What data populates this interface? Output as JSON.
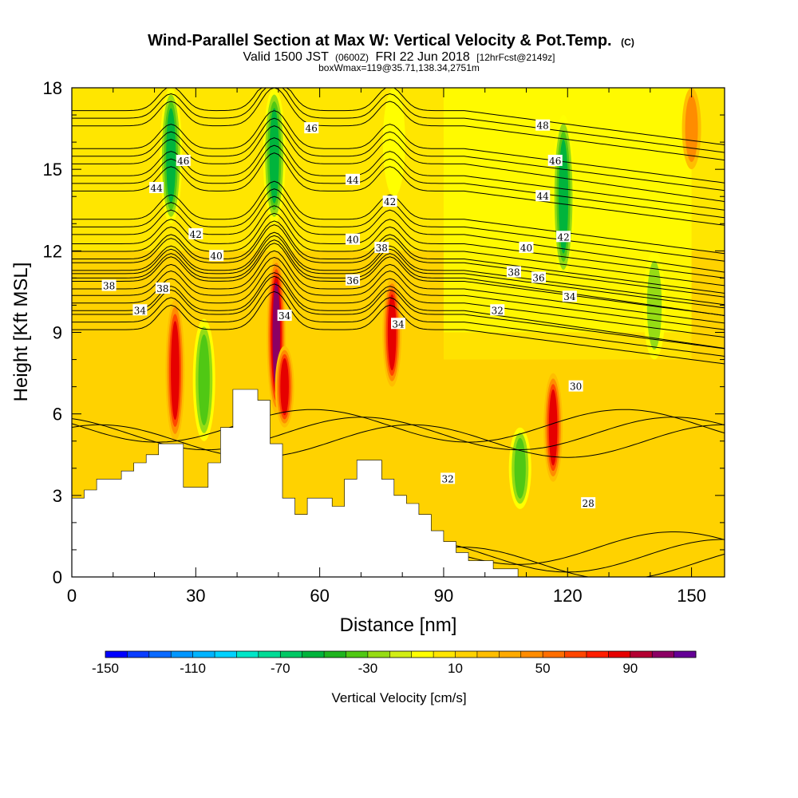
{
  "title": {
    "main": "Wind-Parallel Section at Max W: Vertical Velocity & Pot.Temp.",
    "main_suffix": "(C)",
    "line2_a": "Valid 1500 JST",
    "line2_b": "(0600Z)",
    "line2_c": "FRI 22 Jun 2018",
    "line2_d": "[12hrFcst@2149z]",
    "line3": "boxWmax=119@35.71,138.34,2751m"
  },
  "chart_data": {
    "type": "heatmap",
    "xlabel": "Distance [nm]",
    "ylabel": "Height [Kft MSL]",
    "xlim": [
      0,
      158
    ],
    "ylim": [
      0,
      18
    ],
    "x_ticks": [
      0,
      30,
      60,
      90,
      120,
      150
    ],
    "y_ticks": [
      0,
      3,
      6,
      9,
      12,
      15,
      18
    ],
    "x_tick_labels": [
      "0",
      "30",
      "60",
      "90",
      "120",
      "150"
    ],
    "y_tick_labels": [
      "0",
      "3",
      "6",
      "9",
      "12",
      "15",
      "18"
    ],
    "colorbar": {
      "title": "Vertical Velocity [cm/s]",
      "min": -150,
      "max": 110,
      "step": 10,
      "tick_values": [
        -150,
        -110,
        -70,
        -30,
        10,
        50,
        90
      ],
      "tick_labels": [
        "-150",
        "-110",
        "-70",
        "-30",
        "10",
        "50",
        "90"
      ],
      "colors": [
        "#0000ff",
        "#0a3dff",
        "#0a6aff",
        "#0096ff",
        "#00b4ff",
        "#00d2ff",
        "#00e6c8",
        "#00dc96",
        "#00c864",
        "#00b43c",
        "#1eb41e",
        "#50c814",
        "#96dc14",
        "#d2ee14",
        "#ffff00",
        "#ffe600",
        "#ffd200",
        "#ffbe00",
        "#ffaa00",
        "#ff8c00",
        "#ff6e00",
        "#ff4600",
        "#ff1e00",
        "#e60000",
        "#b40032",
        "#8c0064",
        "#640096"
      ]
    },
    "velocity_features": [
      {
        "x": 25,
        "z_bottom": 5,
        "z_top": 10.2,
        "value": 90
      },
      {
        "x": 49.5,
        "z_bottom": 6,
        "z_top": 11.8,
        "value": 110
      },
      {
        "x": 51.5,
        "z_bottom": 5.5,
        "z_top": 8.5,
        "value": 90
      },
      {
        "x": 77.5,
        "z_bottom": 7,
        "z_top": 11,
        "value": 90
      },
      {
        "x": 116.5,
        "z_bottom": 3.5,
        "z_top": 7.5,
        "value": 80
      },
      {
        "x": 32,
        "z_bottom": 5,
        "z_top": 9.5,
        "value": -40
      },
      {
        "x": 108.5,
        "z_bottom": 2.5,
        "z_top": 5.5,
        "value": -40
      },
      {
        "x": 24,
        "z_bottom": 13,
        "z_top": 18,
        "value": -60
      },
      {
        "x": 49,
        "z_bottom": 13,
        "z_top": 18,
        "value": -60
      },
      {
        "x": 78,
        "z_bottom": 14,
        "z_top": 18,
        "value": -20
      },
      {
        "x": 119,
        "z_bottom": 11,
        "z_top": 17,
        "value": -60
      },
      {
        "x": 141,
        "z_bottom": 8,
        "z_top": 12,
        "value": -30
      },
      {
        "x": 150,
        "z_bottom": 15,
        "z_top": 18,
        "value": 50
      }
    ],
    "terrain": {
      "x": [
        0,
        3,
        3,
        6,
        6,
        12,
        12,
        15,
        15,
        18,
        18,
        21,
        21,
        24,
        24,
        27,
        27,
        30,
        30,
        33,
        33,
        36,
        36,
        39,
        39,
        42,
        42,
        45,
        45,
        48,
        48,
        51,
        51,
        54,
        54,
        57,
        57,
        60,
        60,
        63,
        63,
        66,
        66,
        69,
        69,
        72,
        72,
        75,
        75,
        78,
        78,
        81,
        81,
        84,
        84,
        87,
        87,
        90,
        90,
        93,
        93,
        96,
        96,
        99,
        99,
        102,
        102,
        105,
        105,
        108,
        108,
        111
      ],
      "z": [
        2.9,
        2.9,
        3.2,
        3.2,
        3.6,
        3.6,
        3.9,
        3.9,
        4.2,
        4.2,
        4.5,
        4.5,
        4.9,
        4.9,
        4.9,
        4.9,
        3.3,
        3.3,
        3.3,
        3.3,
        4.2,
        4.2,
        5.5,
        5.5,
        6.9,
        6.9,
        6.9,
        6.9,
        6.5,
        6.5,
        4.9,
        4.9,
        2.9,
        2.9,
        2.3,
        2.3,
        2.9,
        2.9,
        2.9,
        2.9,
        2.6,
        2.6,
        3.6,
        3.6,
        4.3,
        4.3,
        4.3,
        4.3,
        3.6,
        3.6,
        3.0,
        3.0,
        2.7,
        2.7,
        2.3,
        2.3,
        1.7,
        1.7,
        1.3,
        1.3,
        0.9,
        0.9,
        0.6,
        0.6,
        0.6,
        0.6,
        0.3,
        0.3,
        0.3,
        0.3,
        0,
        0
      ]
    },
    "isentropes": [
      {
        "level": 28,
        "z": 0.5
      },
      {
        "level": 30,
        "z": 5.0
      },
      {
        "level": 32,
        "z": 9.1
      },
      {
        "level": 34,
        "z": 9.8
      },
      {
        "level": 36,
        "z": 10.6
      },
      {
        "level": 38,
        "z": 11.0
      },
      {
        "level": 40,
        "z": 11.7
      },
      {
        "level": 42,
        "z": 12.6
      },
      {
        "level": 44,
        "z": 14.2
      },
      {
        "level": 46,
        "z": 15.2
      },
      {
        "level": 48,
        "z": 16.6
      }
    ],
    "contour_labels": [
      {
        "text": "46",
        "x": 27,
        "z": 15.3
      },
      {
        "text": "44",
        "x": 20.5,
        "z": 14.3
      },
      {
        "text": "42",
        "x": 30,
        "z": 12.6
      },
      {
        "text": "40",
        "x": 35,
        "z": 11.8
      },
      {
        "text": "38",
        "x": 9,
        "z": 10.7
      },
      {
        "text": "38",
        "x": 22,
        "z": 10.6
      },
      {
        "text": "34",
        "x": 16.5,
        "z": 9.8
      },
      {
        "text": "46",
        "x": 58,
        "z": 16.5
      },
      {
        "text": "44",
        "x": 68,
        "z": 14.6
      },
      {
        "text": "42",
        "x": 77,
        "z": 13.8
      },
      {
        "text": "40",
        "x": 68,
        "z": 12.4
      },
      {
        "text": "38",
        "x": 75,
        "z": 12.1
      },
      {
        "text": "36",
        "x": 68,
        "z": 10.9
      },
      {
        "text": "34",
        "x": 51.5,
        "z": 9.6
      },
      {
        "text": "34",
        "x": 79,
        "z": 9.3
      },
      {
        "text": "32",
        "x": 103,
        "z": 9.8
      },
      {
        "text": "30",
        "x": 122,
        "z": 7.0
      },
      {
        "text": "32",
        "x": 91,
        "z": 3.6
      },
      {
        "text": "28",
        "x": 125,
        "z": 2.7
      },
      {
        "text": "48",
        "x": 114,
        "z": 16.6
      },
      {
        "text": "46",
        "x": 117,
        "z": 15.3
      },
      {
        "text": "44",
        "x": 114,
        "z": 14.0
      },
      {
        "text": "42",
        "x": 119,
        "z": 12.5
      },
      {
        "text": "40",
        "x": 110,
        "z": 12.1
      },
      {
        "text": "38",
        "x": 107,
        "z": 11.2
      },
      {
        "text": "36",
        "x": 113,
        "z": 11.0
      },
      {
        "text": "34",
        "x": 120.5,
        "z": 10.3
      }
    ]
  }
}
